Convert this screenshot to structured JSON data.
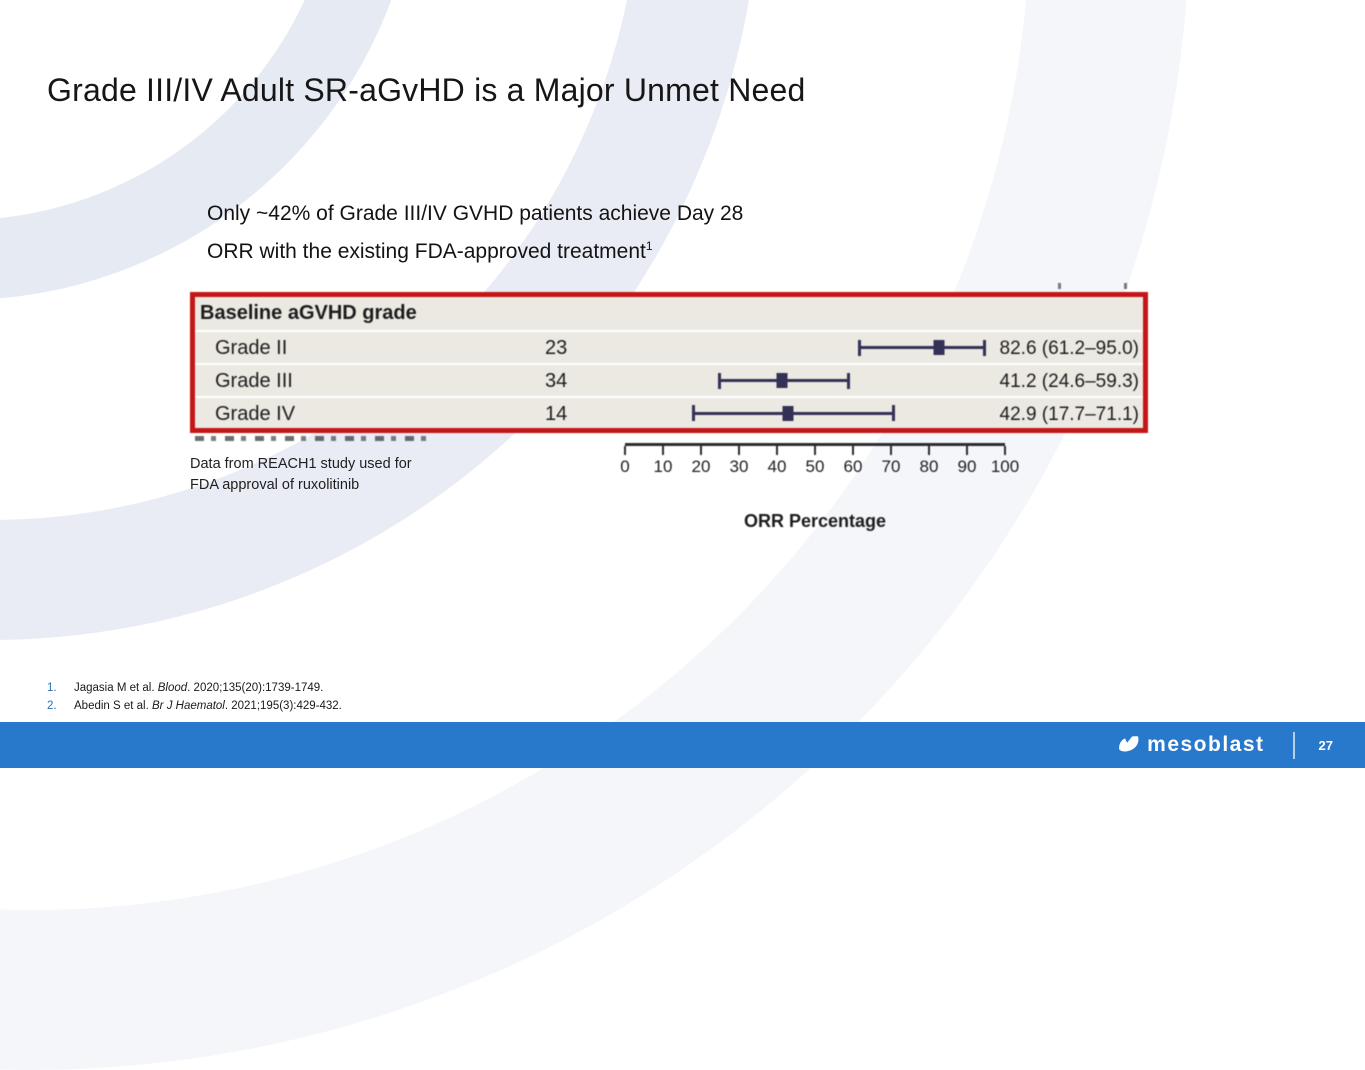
{
  "slide": {
    "title": "Grade III/IV Adult SR-aGvHD is a Major Unmet Need",
    "statement": {
      "line1": "Only ~42% of Grade III/IV GVHD patients achieve Day 28",
      "line2": "ORR with the existing FDA-approved treatment",
      "superscript": "1"
    },
    "caption": {
      "line1": "Data from REACH1 study used for",
      "line2": "FDA approval of ruxolitinib"
    },
    "logo_text": "mesoblast",
    "page_number": "27"
  },
  "references": [
    {
      "num": "1.",
      "before": "Jagasia M et al. ",
      "journal": "Blood",
      "after": ". 2020;135(20):1739-1749."
    },
    {
      "num": "2.",
      "before": "Abedin S et al. ",
      "journal": "Br J Haematol",
      "after": ". 2021;195(3):429-432."
    }
  ],
  "chart_data": {
    "type": "forest",
    "table_header": "Baseline aGVHD grade",
    "rows": [
      {
        "label": "Grade II",
        "n": "23",
        "orr": 82.6,
        "ci_low": 61.2,
        "ci_high": 95.0,
        "display": "82.6 (61.2–95.0)"
      },
      {
        "label": "Grade III",
        "n": "34",
        "orr": 41.2,
        "ci_low": 24.6,
        "ci_high": 59.3,
        "display": "41.2 (24.6–59.3)"
      },
      {
        "label": "Grade IV",
        "n": "14",
        "orr": 42.9,
        "ci_low": 17.7,
        "ci_high": 71.1,
        "display": "42.9 (17.7–71.1)"
      }
    ],
    "xlabel": "ORR Percentage",
    "x_ticks": [
      0,
      10,
      20,
      30,
      40,
      50,
      60,
      70,
      80,
      90,
      100
    ],
    "xlim": [
      0,
      100
    ],
    "legend_position": "none",
    "grid": false
  },
  "colors": {
    "footer_blue": "#2878cb",
    "red_box": "#c51617",
    "marker_navy": "#343156",
    "table_bg": "#ebe9e2",
    "reference_number_blue": "#2b6cb8"
  }
}
